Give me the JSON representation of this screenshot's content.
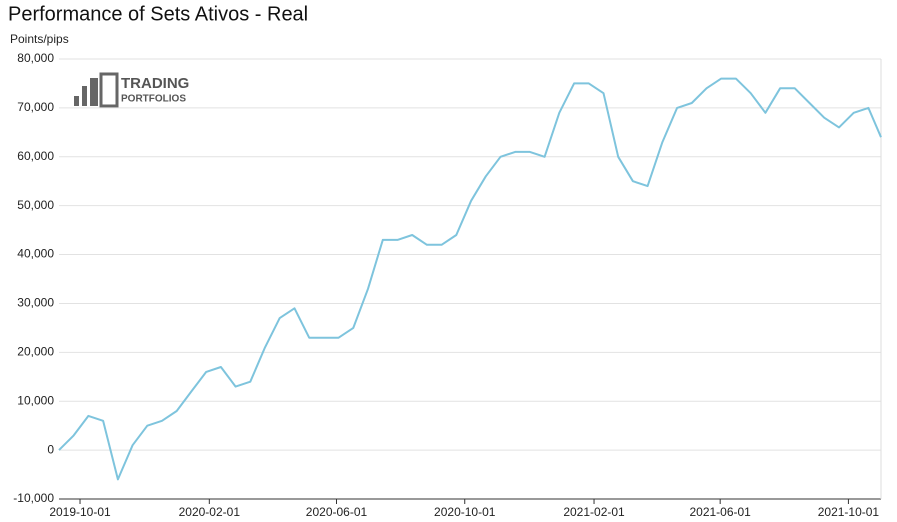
{
  "chart_data": {
    "type": "line",
    "title": "Performance of Sets Ativos - Real",
    "y_label": "Points/pips",
    "logo": {
      "line1": "TRADING",
      "line2": "PORTFOLIOS"
    },
    "grid": true,
    "ylim": [
      -10000,
      80000
    ],
    "yticks": [
      {
        "value": -10000,
        "label": "-10,000"
      },
      0,
      {
        "value": 10000,
        "label": "10,000"
      },
      {
        "value": 20000,
        "label": "20,000"
      },
      {
        "value": 30000,
        "label": "30,000"
      },
      {
        "value": 40000,
        "label": "40,000"
      },
      {
        "value": 50000,
        "label": "50,000"
      },
      {
        "value": 60000,
        "label": "60,000"
      },
      {
        "value": 70000,
        "label": "70,000"
      },
      {
        "value": 80000,
        "label": "80,000"
      }
    ],
    "xlim": [
      "2019-09-11",
      "2021-11-01"
    ],
    "xticks": [
      "2019-10-01",
      "2020-02-01",
      "2020-06-01",
      "2020-10-01",
      "2021-02-01",
      "2021-06-01",
      "2021-10-01"
    ],
    "x": [
      "2019-09-11",
      "2019-09-25",
      "2019-10-09",
      "2019-10-23",
      "2019-11-06",
      "2019-11-20",
      "2019-12-04",
      "2019-12-18",
      "2020-01-01",
      "2020-01-15",
      "2020-01-29",
      "2020-02-12",
      "2020-02-26",
      "2020-03-11",
      "2020-03-25",
      "2020-04-08",
      "2020-04-22",
      "2020-05-06",
      "2020-05-20",
      "2020-06-03",
      "2020-06-17",
      "2020-07-01",
      "2020-07-15",
      "2020-07-29",
      "2020-08-12",
      "2020-08-26",
      "2020-09-09",
      "2020-09-23",
      "2020-10-07",
      "2020-10-21",
      "2020-11-04",
      "2020-11-18",
      "2020-12-02",
      "2020-12-16",
      "2020-12-30",
      "2021-01-13",
      "2021-01-27",
      "2021-02-10",
      "2021-02-24",
      "2021-03-10",
      "2021-03-24",
      "2021-04-07",
      "2021-04-21",
      "2021-05-05",
      "2021-05-19",
      "2021-06-02",
      "2021-06-16",
      "2021-06-30",
      "2021-07-14",
      "2021-07-28",
      "2021-08-11",
      "2021-08-25",
      "2021-09-08",
      "2021-09-22",
      "2021-10-06",
      "2021-10-20",
      "2021-11-01"
    ],
    "series": [
      {
        "name": "Real",
        "color": "#7ec4dd",
        "values": [
          0,
          3000,
          7000,
          6000,
          -6000,
          1000,
          5000,
          6000,
          8000,
          12000,
          16000,
          17000,
          13000,
          14000,
          21000,
          27000,
          29000,
          23000,
          23000,
          23000,
          25000,
          33000,
          43000,
          43000,
          44000,
          42000,
          42000,
          44000,
          51000,
          56000,
          60000,
          61000,
          61000,
          60000,
          69000,
          75000,
          75000,
          73000,
          60000,
          55000,
          54000,
          63000,
          70000,
          71000,
          74000,
          76000,
          76000,
          73000,
          69000,
          74000,
          74000,
          71000,
          68000,
          66000,
          69000,
          70000,
          64000
        ]
      }
    ]
  }
}
